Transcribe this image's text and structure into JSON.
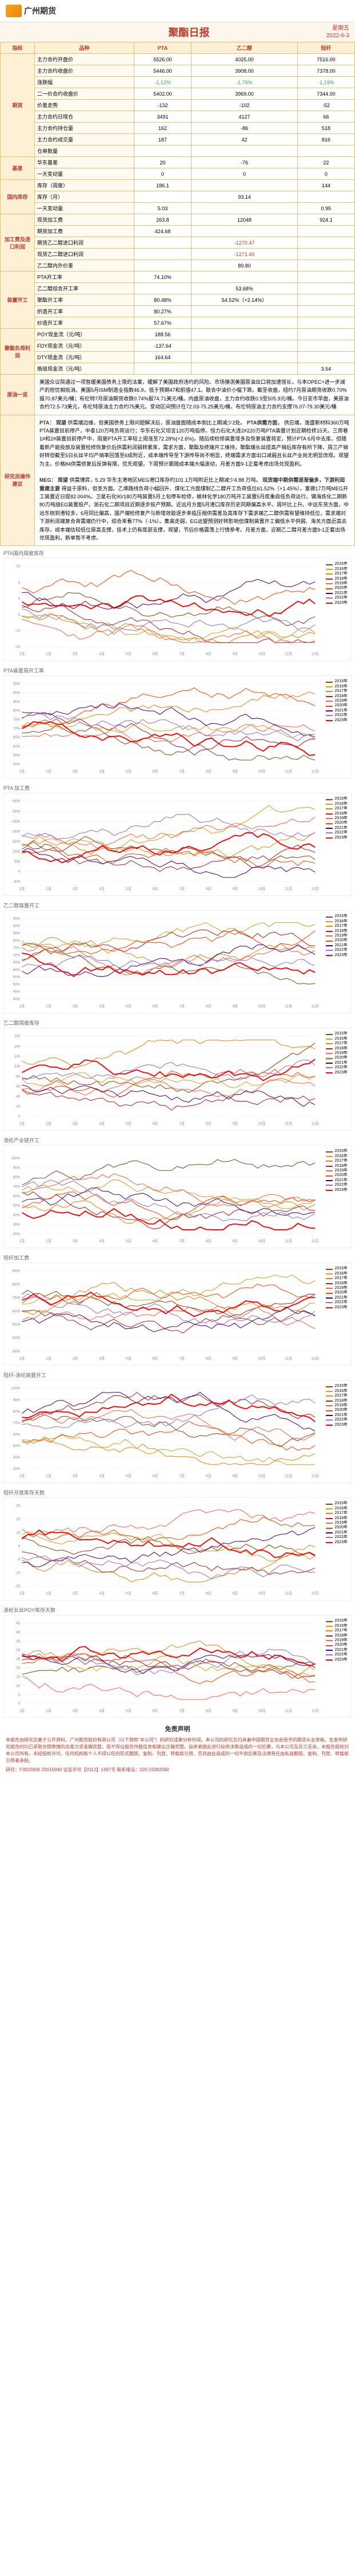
{
  "header": {
    "logo_text": "广州期货"
  },
  "title": {
    "main": "聚酯日报",
    "weekday": "星期五",
    "date": "2022-6-3"
  },
  "table_head": {
    "c0": "指标",
    "c1": "品种",
    "c2": "PTA",
    "c3": "乙二醇",
    "c4": "短纤"
  },
  "rows_futures": {
    "label": "期货",
    "r": [
      {
        "n": "主力合约开盘价",
        "a": "5526.00",
        "b": "4025.00",
        "c": "7516.00"
      },
      {
        "n": "主力合约收盘价",
        "a": "5446.00",
        "b": "3908.00",
        "c": "7378.00"
      },
      {
        "n": "涨跌幅",
        "a": "-1.12%",
        "b": "-1.76%",
        "c": "-1.19%",
        "cls": "green"
      },
      {
        "n": "二一价合约收盘价",
        "a": "5402.00",
        "b": "3969.00",
        "c": "7344.00"
      },
      {
        "n": "价差走势",
        "a": "-132",
        "b": "-102",
        "c": "-52"
      },
      {
        "n": "主力合约日增仓",
        "a": "3491",
        "b": "4127",
        "c": "66"
      },
      {
        "n": "主力合约持仓量",
        "a": "162",
        "b": "-86",
        "c": "518"
      },
      {
        "n": "主力合约成交量",
        "a": "187",
        "b": "42",
        "c": "816"
      },
      {
        "n": "仓单数量",
        "a": "",
        "b": "",
        "c": ""
      }
    ]
  },
  "rows_basis": {
    "label": "基差",
    "r": [
      {
        "n": "华东基差",
        "a": "20",
        "b": "-76",
        "c": "22"
      },
      {
        "n": "一天变动量",
        "a": "0",
        "b": "0",
        "c": "0"
      }
    ]
  },
  "rows_stock": {
    "label": "国内库存",
    "r": [
      {
        "n": "库存（周度）",
        "a": "186.1",
        "b": "",
        "c": "144"
      },
      {
        "n": "库存（月）",
        "a": "",
        "b": "93.14",
        "c": ""
      },
      {
        "n": "一天变动量",
        "a": "5.03",
        "b": "",
        "c": "0.95"
      }
    ]
  },
  "rows_cost": {
    "label": "加工费及进口利润",
    "r": [
      {
        "n": "现货加工费",
        "a": "263.8",
        "b": "12048",
        "c": "924.1"
      },
      {
        "n": "期货加工费",
        "a": "424.68",
        "b": "",
        "c": ""
      },
      {
        "n": "期货乙二醇进口利润",
        "a": "",
        "b": "-1270.47",
        "c": "",
        "cls": "red"
      },
      {
        "n": "现货乙二醇进口利润",
        "a": "",
        "b": "-1271.40",
        "c": "",
        "cls": "red"
      },
      {
        "n": "乙二醇内外价差",
        "a": "",
        "b": "89.80",
        "c": ""
      }
    ]
  },
  "rows_op": {
    "label": "装置开工",
    "r": [
      {
        "n": "PTA开工率",
        "a": "74.10%",
        "b": "",
        "c": ""
      },
      {
        "n": "乙二醇综合开工率",
        "a": "",
        "b": "53.68%",
        "c": ""
      },
      {
        "n": "聚酯开工率",
        "a": "80.48%",
        "b": "54.52%（+2.14%）",
        "c": ""
      },
      {
        "n": "织造开工率",
        "a": "80.27%",
        "b": "",
        "c": ""
      },
      {
        "n": "纱造开工率",
        "a": "57.67%",
        "b": "",
        "c": ""
      }
    ]
  },
  "rows_poly": {
    "label": "聚酯负荷利润",
    "r": [
      {
        "n": "POY现金流（元/吨）",
        "a": "188.56",
        "b": "",
        "c": ""
      },
      {
        "n": "FDY现金流（元/吨）",
        "a": "-137.64",
        "b": "",
        "c": ""
      },
      {
        "n": "DTY现金流（元/吨）",
        "a": "164.64",
        "b": "",
        "c": ""
      },
      {
        "n": "瓶级现金流（元/吨）",
        "a": "",
        "b": "",
        "c": "3.54"
      }
    ]
  },
  "crude": {
    "label": "原油一览",
    "body": "美国众议院通过一项暂缓美国债务上限的法案，缓解了美国政府违约的风险。市场猜测美国原油出口将加速增长，与本OPEC+进一步减产的担忧相抵消。美国5月ISM制造业指数46.9，低于预期47和前值47.1。联合中油价小幅下跌。截至收盘，纽约7月原油期货收跌0.70%报70.87美元/桶；布伦特7月原油期货收跌0.74%报74.71美元/桶。内盘原油收盘，主力合约收跌0.9至505.9元/桶。今日亚市早盘，美原油合约72.5-73美元，布伦特原油主力合约75美元。变动区间预计在72.03-75.25美元/桶，布伦特原油主力合约支撑76.07-79.30美元/桶"
  },
  "advice": {
    "label": "研究员操作建议",
    "pta_title": "PTA：",
    "pta_sub1": "观望",
    "pta_body1": "供需端边缘，但美国债务上限问题解决后，原油盘面随成本侧比上期减少2处。",
    "pta_sub2": "PTA供需方面，",
    "pta_body2": "供应端，逸盛新材料360万吨PTA装置目前停产，中泰120万吨负荷运行；华东石化又坦言120万吨临停。恒力石化大连2#220万吨PTA装置计划近期检修15天。三房巷1#和2#装置目前停产中，周度PTA开工率较上周涨至72.28%(+2.6%)。随后续检修装置增多及恢复装置将定，预计PTA 6月中去库。但随着新产能投放及装置检修恢复价后供需利润弱转累库，需求方面，聚酯及终端开工维持，聚酯端长丝提高产销后库存有所下降，周三产销好转但截至5日长丝平均产销率回落至6成附近，成本端传导至下游传导尚不明显，终端需求方面出口减弱且长丝产业尚无明显改观。观望为主。价格84供需修复后反弹有限，优先观望。下周预计跟随成本端大幅波动，月差方面9-1正套考虑出场兑现盈利。",
    "meg_title": "MEG：",
    "meg_sub1": "观望",
    "meg_body1": "供需博弈，5.29 华东主港地区MEG港口库存约101.1万吨附近比上期减少4.88 万吨。",
    "meg_sub2": "现货端中期供需逐渐偏多，下游利润重建主要",
    "meg_body2": "得益于原料，但圣方面。乙烯路线负荷小幅回升、煤化工方面煤制乙二醇开工负荷低位61.52%（+1.45%）。富德17万吨MEG开工装置近日提82.004%。卫星石化90/180万吨装置5月上旬停车检修，榆林化学180万吨开工装置5月底重启低负荷运行。镇海炼化二期新80万吨级EG装置投产。浙石化二期项目近期逐步投产预期。近远月方面5月港口库存历史同期偏高水平。周环比上升。中远东货方面，中远东侧到港较多，6月同比偏高，国产端检修复产与新增效能逐步来临压缩供需差及高库存下需求端乙二醇供需有望维持低位，需求端对下游利润端复合背需端仍行中，综合来看77%（-1%）。集装走弱，EG远望预测好转影响但煤制装置开工偏低水平供弱、海关方面近高去库存。成本端估较低位原高支撑，技术上仍有底部支撑，观望，节后价格震荡上行情参考。月差方面，近期乙二醇月差方面9-1正套出场兑现盈利，新单暂不考虑。"
  },
  "charts": [
    {
      "title": "PTA国内周度库存",
      "ylim": [
        -15,
        10
      ],
      "yticks": [
        -15,
        -10,
        -5,
        0,
        5,
        10
      ]
    },
    {
      "title": "PTA装置周开工率",
      "ylim": [
        50,
        95
      ],
      "yticks": [
        50,
        55,
        60,
        65,
        70,
        75,
        80,
        85,
        90,
        95
      ]
    },
    {
      "title": "PTA 加工费",
      "ylim": [
        -500,
        3500
      ],
      "yticks": [
        -500,
        0,
        500,
        1000,
        1500,
        2000,
        2500,
        3000,
        3500
      ]
    },
    {
      "title": "乙二醇装置开工",
      "ylim": [
        40,
        95
      ],
      "yticks": [
        40,
        45,
        50,
        55,
        60,
        65,
        70,
        75,
        80,
        85,
        90,
        95
      ]
    },
    {
      "title": "乙二醇周度库存",
      "ylim": [
        0,
        160
      ],
      "yticks": [
        0,
        20,
        40,
        60,
        80,
        100,
        120,
        140,
        160
      ]
    },
    {
      "title": "涤纶产业链开工",
      "ylim": [
        20,
        105
      ],
      "yticks": [
        20,
        30,
        40,
        50,
        60,
        70,
        80,
        90,
        100
      ]
    },
    {
      "title": "短纤加工费",
      "ylim": [
        3000,
        9000
      ],
      "yticks": [
        3000,
        4000,
        5000,
        6000,
        7000,
        8000,
        9000
      ]
    },
    {
      "title": "短纤-涤纶装置开工",
      "ylim": [
        30,
        100
      ],
      "yticks": [
        30,
        40,
        50,
        60,
        70,
        80,
        90,
        100
      ]
    },
    {
      "title": "短纤月度库存天数",
      "ylim": [
        -25,
        35
      ],
      "yticks": [
        -25,
        -15,
        -5,
        5,
        15,
        25,
        35
      ]
    },
    {
      "title": "涤纶长丝POY库存天数",
      "ylim": [
        0,
        45
      ],
      "yticks": [
        0,
        5,
        10,
        15,
        20,
        25,
        30,
        35,
        40,
        45
      ]
    }
  ],
  "legend_years": [
    {
      "y": "2015年",
      "c": "#8b4513"
    },
    {
      "y": "2016年",
      "c": "#d4a020"
    },
    {
      "y": "2017年",
      "c": "#e8850c"
    },
    {
      "y": "2018年",
      "c": "#b22222"
    },
    {
      "y": "2019年",
      "c": "#ff6347"
    },
    {
      "y": "2020年",
      "c": "#ff4500"
    },
    {
      "y": "2021年",
      "c": "#4b0082"
    },
    {
      "y": "2022年",
      "c": "#9370db"
    },
    {
      "y": "2023年",
      "c": "#ff0000"
    }
  ],
  "disclaimer": {
    "title": "免责声明",
    "body": "本报告由研究员基于公开资料、广州期货股份有限公司（以下简称\"本公司\"）的研究成果分析所得。本公司的研究员均具备中国期货业协会授予的期货从业资格，在发布研究报告时均已采取合理审慎的态度力求准确完整，但不保证报告所载信息和建议正确完整。投资者据此进行投资决策造成的一切后果，与本公司及员工无关。本报告版权归本公司所有。未经授权许可，任何机构和个人不得以任何形式翻版、复制、刊登、转载和引用，否则由此造成的一切不良后果及法律责任由私自翻版、复制、刊登、转载和引用者承担。",
    "foot": "研究：F3025906  Z0015940    证监许可【2012】1497号    联系电话：020-23382580"
  }
}
